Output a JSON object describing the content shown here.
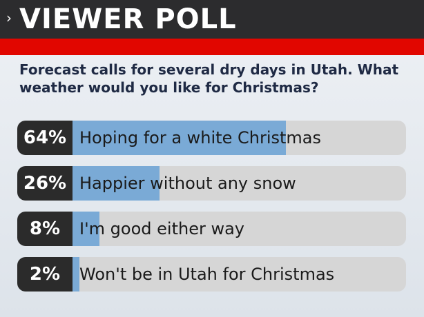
{
  "chart_data": {
    "type": "bar",
    "orientation": "horizontal",
    "title": "VIEWER POLL",
    "subtitle": "Forecast calls for several dry days in Utah. What weather would you like for Christmas?",
    "categories": [
      "Hoping for a white Christmas",
      "Happier without any snow",
      "I'm good either way",
      "Won't be in Utah for Christmas"
    ],
    "values": [
      64,
      26,
      8,
      2
    ],
    "value_labels": [
      "64%",
      "26%",
      "8%",
      "2%"
    ],
    "xlim": [
      0,
      100
    ],
    "color": "#7aaad6"
  }
}
